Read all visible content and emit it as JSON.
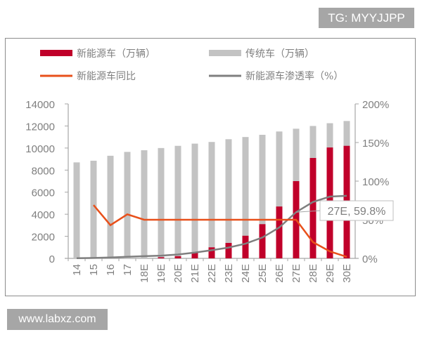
{
  "watermarks": {
    "top": "TG: MYYJJPP",
    "bottom": "www.labxz.com"
  },
  "colors": {
    "nev_bar": "#c0002a",
    "ice_bar": "#c3c3c3",
    "yoy_line": "#e8501b",
    "penetration_line": "#7f7f7f",
    "axis": "#a6a6a6",
    "text": "#7f7f7f"
  },
  "legend": [
    {
      "label": "新能源车（万辆）",
      "type": "bar",
      "color": "#c0002a"
    },
    {
      "label": "传统车（万辆）",
      "type": "bar",
      "color": "#c3c3c3"
    },
    {
      "label": "新能源车同比",
      "type": "line",
      "color": "#e8501b"
    },
    {
      "label": "新能源车渗透率（%）",
      "type": "line",
      "color": "#7f7f7f"
    }
  ],
  "annotation": {
    "label": "27E, 59.8%",
    "category": "27E",
    "value": 59.8
  },
  "chart_data": {
    "type": "bar",
    "title": "",
    "xlabel": "",
    "ylabel": "",
    "ylabel_right": "",
    "categories": [
      "14",
      "15",
      "16",
      "17",
      "18E",
      "19E",
      "20E",
      "21E",
      "22E",
      "23E",
      "24E",
      "25E",
      "26E",
      "27E",
      "28E",
      "29E",
      "30E"
    ],
    "ylim": [
      0,
      14000
    ],
    "yticks": [
      0,
      2000,
      4000,
      6000,
      8000,
      10000,
      12000,
      14000
    ],
    "ylim_right": [
      0,
      200
    ],
    "yticks_right": [
      "0%",
      "50%",
      "100%",
      "150%",
      "200%"
    ],
    "stacked": false,
    "grid": false,
    "legend_position": "top",
    "series": [
      {
        "name": "新能源车（万辆）",
        "type": "bar",
        "axis": "left",
        "values": [
          30,
          40,
          50,
          60,
          80,
          100,
          200,
          550,
          1000,
          1400,
          2050,
          3100,
          4700,
          7000,
          9100,
          10050,
          10200
        ]
      },
      {
        "name": "传统车（万辆）",
        "type": "bar",
        "axis": "left",
        "note": "total bar height (background)",
        "values": [
          8700,
          8850,
          9300,
          9650,
          9800,
          10000,
          10200,
          10400,
          10550,
          10800,
          11000,
          11200,
          11500,
          11750,
          12000,
          12250,
          12450
        ]
      },
      {
        "name": "新能源车同比",
        "type": "line",
        "axis": "right",
        "values": [
          null,
          69,
          43,
          57,
          50,
          50,
          50,
          50,
          50,
          50,
          50,
          50,
          50,
          50,
          21,
          9,
          2
        ]
      },
      {
        "name": "新能源车渗透率（%）",
        "type": "line",
        "axis": "right",
        "values": [
          0.3,
          0.5,
          1.2,
          2.0,
          2.8,
          3.5,
          5.0,
          7.5,
          10.5,
          14.0,
          19.0,
          27.0,
          40.0,
          59.8,
          73.0,
          80.0,
          81.0
        ]
      }
    ],
    "annotations": [
      {
        "text": "27E, 59.8%",
        "x": "27E",
        "y": 59.8,
        "axis": "right"
      }
    ]
  }
}
